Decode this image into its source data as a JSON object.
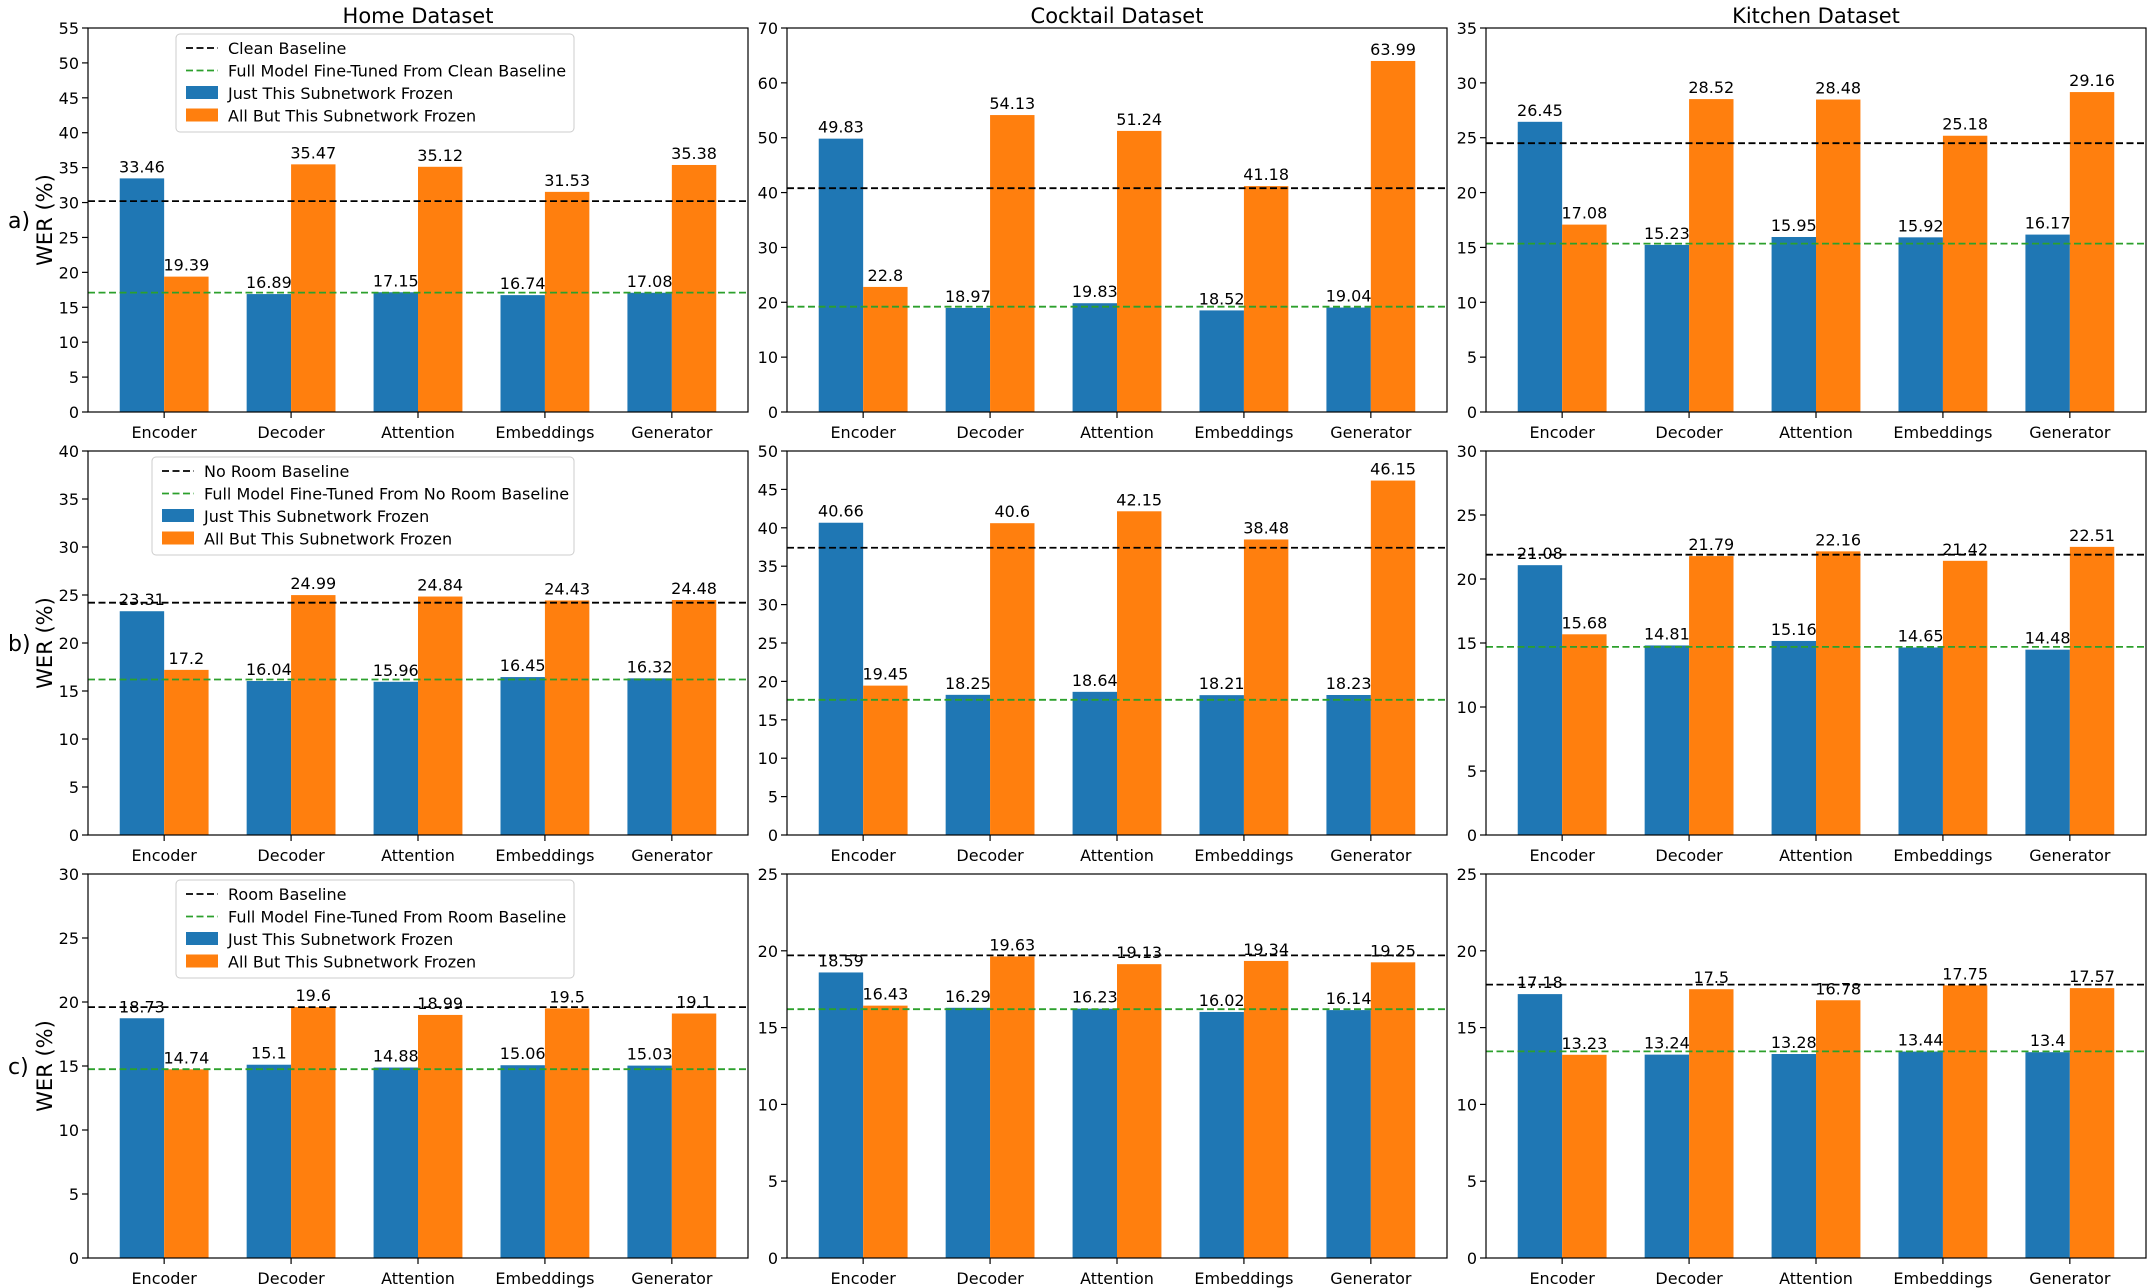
{
  "figure": {
    "column_titles": [
      "Home Dataset",
      "Cocktail Dataset",
      "Kitchen Dataset"
    ],
    "row_labels": [
      "a)",
      "b)",
      "c)"
    ],
    "ylabel": "WER (%)"
  },
  "colors": {
    "just_frozen": "#1f77b4",
    "all_but_frozen": "#ff7f0e",
    "baseline": "#000000",
    "fine_tuned": "#2ca02c"
  },
  "chart_data": [
    {
      "type": "bar",
      "row": "a",
      "dataset": "Home Dataset",
      "categories": [
        "Encoder",
        "Decoder",
        "Attention",
        "Embeddings",
        "Generator"
      ],
      "ylim": [
        0,
        55
      ],
      "yticks": [
        0,
        5,
        10,
        15,
        20,
        25,
        30,
        35,
        40,
        45,
        50,
        55
      ],
      "series": [
        {
          "name": "Just This Subnetwork Frozen",
          "values": [
            33.46,
            16.89,
            17.15,
            16.74,
            17.08
          ]
        },
        {
          "name": "All But This Subnetwork Frozen",
          "values": [
            19.39,
            35.47,
            35.12,
            31.53,
            35.38
          ]
        }
      ],
      "baseline": {
        "name": "Clean Baseline",
        "value": 30.2
      },
      "fine_tuned": {
        "name": "Full Model Fine-Tuned From Clean Baseline",
        "value": 17.1
      },
      "legend": "top-left"
    },
    {
      "type": "bar",
      "row": "a",
      "dataset": "Cocktail Dataset",
      "categories": [
        "Encoder",
        "Decoder",
        "Attention",
        "Embeddings",
        "Generator"
      ],
      "ylim": [
        0,
        70
      ],
      "yticks": [
        0,
        10,
        20,
        30,
        40,
        50,
        60,
        70
      ],
      "series": [
        {
          "name": "Just This Subnetwork Frozen",
          "values": [
            49.83,
            18.97,
            19.83,
            18.52,
            19.04
          ]
        },
        {
          "name": "All But This Subnetwork Frozen",
          "values": [
            22.8,
            54.13,
            51.24,
            41.18,
            63.99
          ]
        }
      ],
      "baseline": {
        "name": "Clean Baseline",
        "value": 40.8
      },
      "fine_tuned": {
        "name": "Full Model Fine-Tuned From Clean Baseline",
        "value": 19.2
      }
    },
    {
      "type": "bar",
      "row": "a",
      "dataset": "Kitchen Dataset",
      "categories": [
        "Encoder",
        "Decoder",
        "Attention",
        "Embeddings",
        "Generator"
      ],
      "ylim": [
        0,
        35
      ],
      "yticks": [
        0,
        5,
        10,
        15,
        20,
        25,
        30,
        35
      ],
      "series": [
        {
          "name": "Just This Subnetwork Frozen",
          "values": [
            26.45,
            15.23,
            15.95,
            15.92,
            16.17
          ]
        },
        {
          "name": "All But This Subnetwork Frozen",
          "values": [
            17.08,
            28.52,
            28.48,
            25.18,
            29.16
          ]
        }
      ],
      "baseline": {
        "name": "Clean Baseline",
        "value": 24.5
      },
      "fine_tuned": {
        "name": "Full Model Fine-Tuned From Clean Baseline",
        "value": 15.35
      }
    },
    {
      "type": "bar",
      "row": "b",
      "dataset": "Home Dataset",
      "categories": [
        "Encoder",
        "Decoder",
        "Attention",
        "Embeddings",
        "Generator"
      ],
      "ylim": [
        0,
        40
      ],
      "yticks": [
        0,
        5,
        10,
        15,
        20,
        25,
        30,
        35,
        40
      ],
      "series": [
        {
          "name": "Just This Subnetwork Frozen",
          "values": [
            23.31,
            16.04,
            15.96,
            16.45,
            16.32
          ]
        },
        {
          "name": "All But This Subnetwork Frozen",
          "values": [
            17.2,
            24.99,
            24.84,
            24.43,
            24.48
          ]
        }
      ],
      "baseline": {
        "name": "No Room Baseline",
        "value": 24.2
      },
      "fine_tuned": {
        "name": "Full Model Fine-Tuned From No Room Baseline",
        "value": 16.2
      },
      "legend": "top-left"
    },
    {
      "type": "bar",
      "row": "b",
      "dataset": "Cocktail Dataset",
      "categories": [
        "Encoder",
        "Decoder",
        "Attention",
        "Embeddings",
        "Generator"
      ],
      "ylim": [
        0,
        50
      ],
      "yticks": [
        0,
        5,
        10,
        15,
        20,
        25,
        30,
        35,
        40,
        45,
        50
      ],
      "series": [
        {
          "name": "Just This Subnetwork Frozen",
          "values": [
            40.66,
            18.25,
            18.64,
            18.21,
            18.23
          ]
        },
        {
          "name": "All But This Subnetwork Frozen",
          "values": [
            19.45,
            40.6,
            42.15,
            38.48,
            46.15
          ]
        }
      ],
      "baseline": {
        "name": "No Room Baseline",
        "value": 37.4
      },
      "fine_tuned": {
        "name": "Full Model Fine-Tuned From No Room Baseline",
        "value": 17.6
      }
    },
    {
      "type": "bar",
      "row": "b",
      "dataset": "Kitchen Dataset",
      "categories": [
        "Encoder",
        "Decoder",
        "Attention",
        "Embeddings",
        "Generator"
      ],
      "ylim": [
        0,
        30
      ],
      "yticks": [
        0,
        5,
        10,
        15,
        20,
        25,
        30
      ],
      "series": [
        {
          "name": "Just This Subnetwork Frozen",
          "values": [
            21.08,
            14.81,
            15.16,
            14.65,
            14.48
          ]
        },
        {
          "name": "All But This Subnetwork Frozen",
          "values": [
            15.68,
            21.79,
            22.16,
            21.42,
            22.51
          ]
        }
      ],
      "baseline": {
        "name": "No Room Baseline",
        "value": 21.9
      },
      "fine_tuned": {
        "name": "Full Model Fine-Tuned From No Room Baseline",
        "value": 14.7
      }
    },
    {
      "type": "bar",
      "row": "c",
      "dataset": "Home Dataset",
      "categories": [
        "Encoder",
        "Decoder",
        "Attention",
        "Embeddings",
        "Generator"
      ],
      "ylim": [
        0,
        30
      ],
      "yticks": [
        0,
        5,
        10,
        15,
        20,
        25,
        30
      ],
      "series": [
        {
          "name": "Just This Subnetwork Frozen",
          "values": [
            18.73,
            15.1,
            14.88,
            15.06,
            15.03
          ]
        },
        {
          "name": "All But This Subnetwork Frozen",
          "values": [
            14.74,
            19.6,
            18.99,
            19.5,
            19.1
          ]
        }
      ],
      "baseline": {
        "name": "Room Baseline",
        "value": 19.6
      },
      "fine_tuned": {
        "name": "Full Model Fine-Tuned From Room Baseline",
        "value": 14.75
      },
      "legend": "top-left"
    },
    {
      "type": "bar",
      "row": "c",
      "dataset": "Cocktail Dataset",
      "categories": [
        "Encoder",
        "Decoder",
        "Attention",
        "Embeddings",
        "Generator"
      ],
      "ylim": [
        0,
        25
      ],
      "yticks": [
        0,
        5,
        10,
        15,
        20,
        25
      ],
      "series": [
        {
          "name": "Just This Subnetwork Frozen",
          "values": [
            18.59,
            16.29,
            16.23,
            16.02,
            16.14
          ]
        },
        {
          "name": "All But This Subnetwork Frozen",
          "values": [
            16.43,
            19.63,
            19.13,
            19.34,
            19.25
          ]
        }
      ],
      "baseline": {
        "name": "Room Baseline",
        "value": 19.7
      },
      "fine_tuned": {
        "name": "Full Model Fine-Tuned From Room Baseline",
        "value": 16.2
      }
    },
    {
      "type": "bar",
      "row": "c",
      "dataset": "Kitchen Dataset",
      "categories": [
        "Encoder",
        "Decoder",
        "Attention",
        "Embeddings",
        "Generator"
      ],
      "ylim": [
        0,
        25
      ],
      "yticks": [
        0,
        5,
        10,
        15,
        20,
        25
      ],
      "series": [
        {
          "name": "Just This Subnetwork Frozen",
          "values": [
            17.18,
            13.24,
            13.28,
            13.44,
            13.4
          ]
        },
        {
          "name": "All But This Subnetwork Frozen",
          "values": [
            13.23,
            17.5,
            16.78,
            17.75,
            17.57
          ]
        }
      ],
      "baseline": {
        "name": "Room Baseline",
        "value": 17.8
      },
      "fine_tuned": {
        "name": "Full Model Fine-Tuned From Room Baseline",
        "value": 13.45
      }
    }
  ]
}
